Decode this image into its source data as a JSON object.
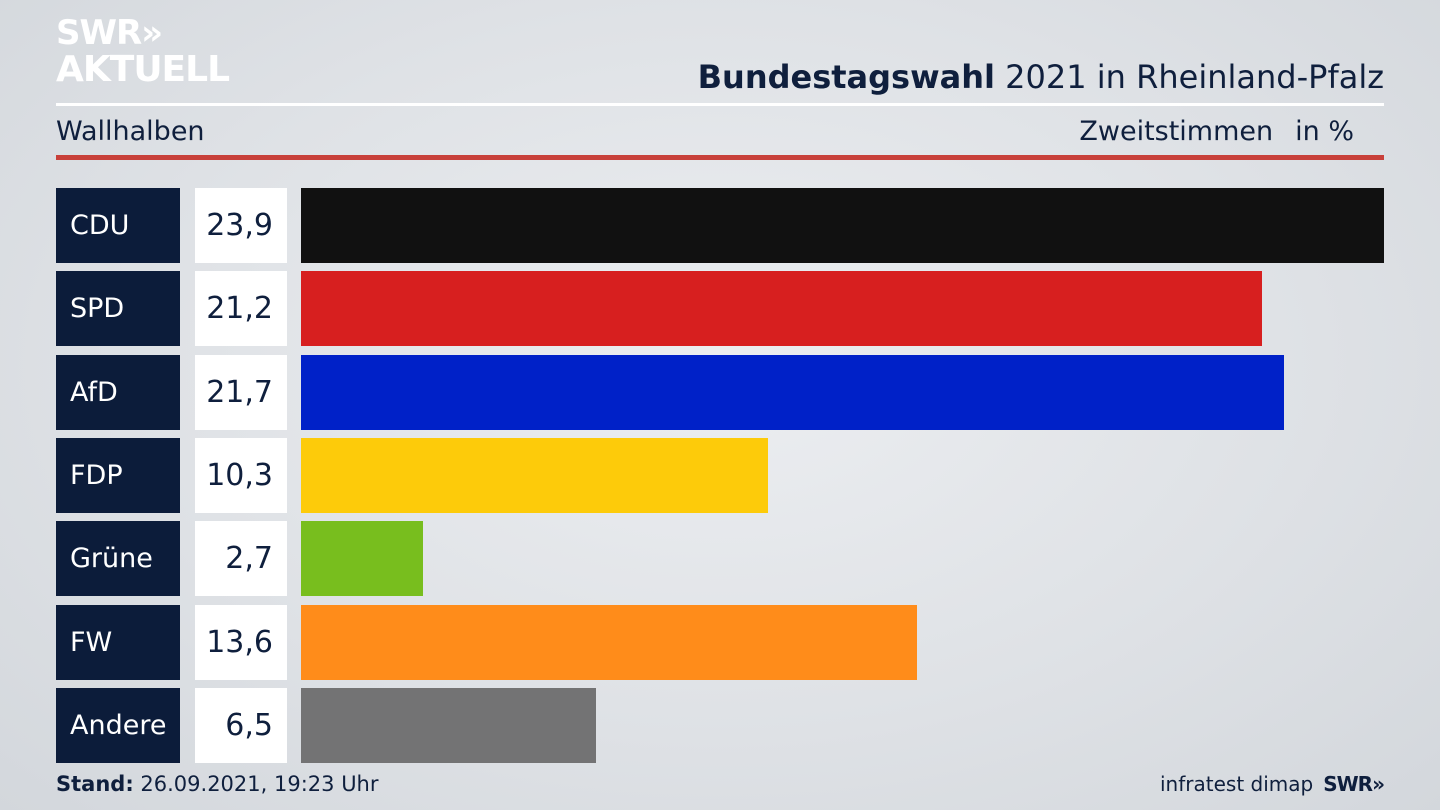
{
  "brand": {
    "line1": "SWR",
    "arrows": "»",
    "line2": "AKTUELL"
  },
  "header": {
    "title_bold": "Bundestagswahl",
    "title_rest": "2021 in Rheinland-Pfalz",
    "subtitle": "Wallhalben",
    "unit_label": "Zweitstimmen",
    "unit": "in %"
  },
  "footer": {
    "stand_label": "Stand:",
    "stand_value": "26.09.2021, 19:23 Uhr",
    "source": "infratest dimap",
    "brand": "SWR»"
  },
  "chart_data": {
    "type": "bar",
    "orientation": "horizontal",
    "categories": [
      "CDU",
      "SPD",
      "AfD",
      "FDP",
      "Grüne",
      "FW",
      "Andere"
    ],
    "values": [
      23.9,
      21.2,
      21.7,
      10.3,
      2.7,
      13.6,
      6.5
    ],
    "labels": [
      "23,9",
      "21,2",
      "21,7",
      "10,3",
      "2,7",
      "13,6",
      "6,5"
    ],
    "colors": [
      "#111111",
      "#d71f1f",
      "#0021c8",
      "#fdcb0a",
      "#78be1e",
      "#ff8c1a",
      "#737374"
    ],
    "xlim": [
      0,
      23.9
    ]
  }
}
